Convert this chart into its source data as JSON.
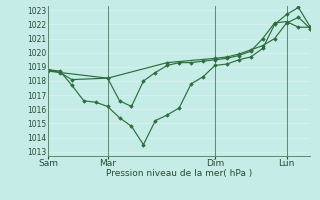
{
  "xlabel": "Pression niveau de la mer( hPa )",
  "bg_color": "#c5ece6",
  "grid_color": "#ddf0ec",
  "line_color": "#2d6e3e",
  "vline_color": "#5a8a70",
  "ylim": [
    1013,
    1023
  ],
  "yticks": [
    1013,
    1014,
    1015,
    1016,
    1017,
    1018,
    1019,
    1020,
    1021,
    1022,
    1023
  ],
  "xtick_labels": [
    "Sam",
    "Mar",
    "Dim",
    "Lun"
  ],
  "xtick_positions": [
    0,
    5,
    14,
    20
  ],
  "vline_positions": [
    0,
    5,
    14,
    20
  ],
  "series1_x": [
    0,
    1,
    2,
    3,
    4,
    5,
    6,
    7,
    8,
    9,
    10,
    11,
    12,
    13,
    14,
    15,
    16,
    17,
    18,
    19,
    20,
    21,
    22
  ],
  "series1_y": [
    1018.8,
    1018.7,
    1017.7,
    1016.6,
    1016.5,
    1016.2,
    1015.4,
    1014.8,
    1013.5,
    1015.2,
    1015.6,
    1016.1,
    1017.8,
    1018.3,
    1019.1,
    1019.2,
    1019.5,
    1019.7,
    1020.3,
    1022.0,
    1022.7,
    1023.2,
    1021.8
  ],
  "series2_x": [
    0,
    1,
    2,
    5,
    6,
    7,
    8,
    9,
    10,
    11,
    12,
    13,
    14,
    15,
    16,
    17,
    18,
    19,
    20,
    21,
    22
  ],
  "series2_y": [
    1018.8,
    1018.6,
    1018.1,
    1018.2,
    1016.6,
    1016.2,
    1018.0,
    1018.6,
    1019.1,
    1019.3,
    1019.3,
    1019.4,
    1019.5,
    1019.6,
    1019.8,
    1020.1,
    1021.0,
    1022.1,
    1022.2,
    1021.8,
    1021.8
  ],
  "series3_x": [
    0,
    5,
    10,
    14,
    15,
    16,
    17,
    18,
    19,
    20,
    21,
    22
  ],
  "series3_y": [
    1018.7,
    1018.2,
    1019.3,
    1019.6,
    1019.7,
    1019.9,
    1020.2,
    1020.5,
    1021.0,
    1022.1,
    1022.5,
    1021.7
  ],
  "xlim": [
    0,
    22
  ]
}
